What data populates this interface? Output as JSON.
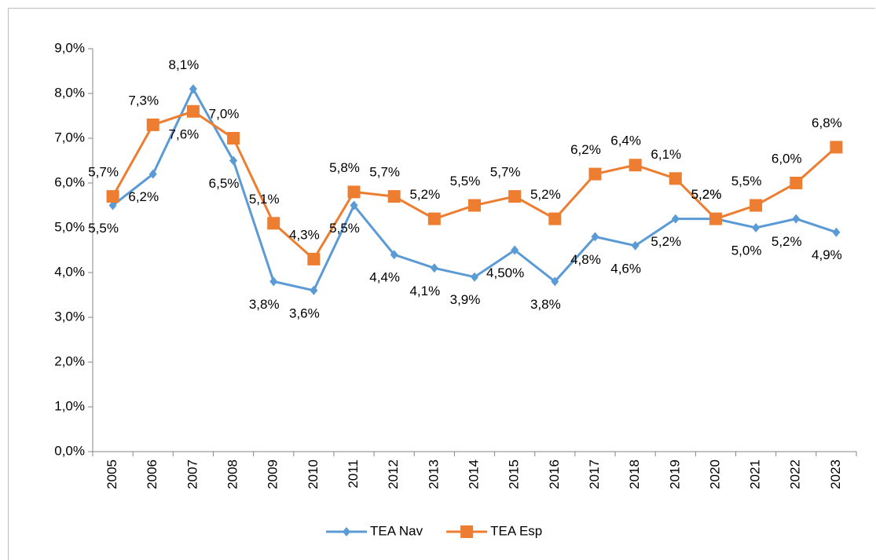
{
  "chart_data": {
    "type": "line",
    "categories": [
      "2005",
      "2006",
      "2007",
      "2008",
      "2009",
      "2010",
      "2011",
      "2012",
      "2013",
      "2014",
      "2015",
      "2016",
      "2017",
      "2018",
      "2019",
      "2020",
      "2021",
      "2022",
      "2023"
    ],
    "series": [
      {
        "name": "TEA Nav",
        "color": "#5b9bd5",
        "marker": "diamond",
        "values": [
          5.5,
          6.2,
          8.1,
          6.5,
          3.8,
          3.6,
          5.5,
          4.4,
          4.1,
          3.9,
          4.5,
          3.8,
          4.8,
          4.6,
          5.2,
          5.2,
          5.0,
          5.2,
          4.9
        ],
        "value_labels": [
          "5,5%",
          "6,2%",
          "8,1%",
          "6,5%",
          "3,8%",
          "3,6%",
          "5,5%",
          "4,4%",
          "4,1%",
          "3,9%",
          "4,50%",
          "3,8%",
          "4,8%",
          "4,6%",
          "5,2%",
          "5,2%",
          "5,0%",
          "5,2%",
          "4,9%"
        ]
      },
      {
        "name": "TEA Esp",
        "color": "#ed7d31",
        "marker": "square",
        "values": [
          5.7,
          7.3,
          7.6,
          7.0,
          5.1,
          4.3,
          5.8,
          5.7,
          5.2,
          5.5,
          5.7,
          5.2,
          6.2,
          6.4,
          6.1,
          5.2,
          5.5,
          6.0,
          6.8
        ],
        "value_labels": [
          "5,7%",
          "7,3%",
          "7,6%",
          "7,0%",
          "5,1%",
          "4,3%",
          "5,8%",
          "5,7%",
          "5,2%",
          "5,5%",
          "5,7%",
          "5,2%",
          "6,2%",
          "6,4%",
          "6,1%",
          "5,2%",
          "5,5%",
          "6,0%",
          "6,8%"
        ]
      }
    ],
    "ylim": [
      0,
      9
    ],
    "yticks": [
      {
        "value": 0,
        "label": "0,0%"
      },
      {
        "value": 1,
        "label": "1,0%"
      },
      {
        "value": 2,
        "label": "2,0%"
      },
      {
        "value": 3,
        "label": "3,0%"
      },
      {
        "value": 4,
        "label": "4,0%"
      },
      {
        "value": 5,
        "label": "5,0%"
      },
      {
        "value": 6,
        "label": "6,0%"
      },
      {
        "value": 7,
        "label": "7,0%"
      },
      {
        "value": 8,
        "label": "8,0%"
      },
      {
        "value": 9,
        "label": "9,0%"
      }
    ],
    "grid": false,
    "legend": "bottom"
  }
}
